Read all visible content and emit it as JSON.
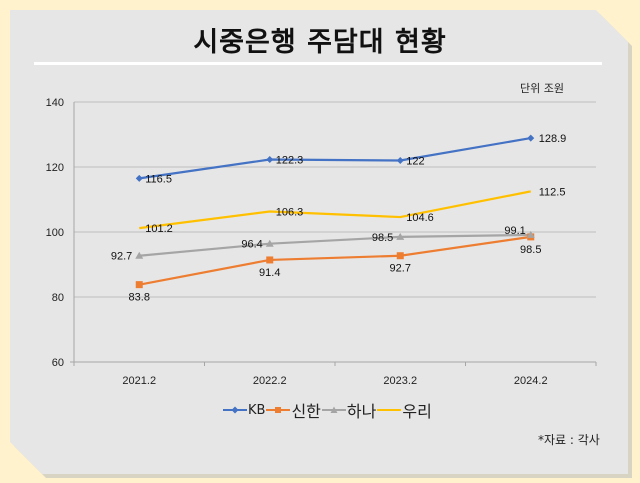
{
  "header": {
    "title": "시중은행 주담대 현황",
    "unit_label": "단위 조원"
  },
  "footer": {
    "source": "*자료 : 각사"
  },
  "colors": {
    "background": "#FFF2CC",
    "panel": "#E7E6E6",
    "KB": "#4472C4",
    "신한": "#ED7D31",
    "하나": "#A5A5A5",
    "우리": "#FFC000"
  },
  "chart_data": {
    "type": "line",
    "title": "시중은행 주담대 현황",
    "xlabel": "",
    "ylabel": "",
    "categories": [
      "2021.2",
      "2022.2",
      "2023.2",
      "2024.2"
    ],
    "ylim": [
      60,
      140
    ],
    "yticks": [
      60,
      80,
      100,
      120,
      140
    ],
    "ytick_labels": [
      "60",
      "80",
      "100",
      "120",
      "140"
    ],
    "grid": true,
    "legend_position": "bottom",
    "series": [
      {
        "name": "KB",
        "marker": "diamond",
        "values": [
          116.5,
          122.3,
          122,
          128.9
        ],
        "labels": [
          "116.5",
          "122.3",
          "122",
          "128.9"
        ]
      },
      {
        "name": "신한",
        "marker": "square",
        "values": [
          83.8,
          91.4,
          92.7,
          98.5
        ],
        "labels": [
          "83.8",
          "91.4",
          "92.7",
          "98.5"
        ]
      },
      {
        "name": "하나",
        "marker": "triangle",
        "values": [
          92.7,
          96.4,
          98.5,
          99.1
        ],
        "labels": [
          "92.7",
          "96.4",
          "98.5",
          "99.1"
        ]
      },
      {
        "name": "우리",
        "marker": "none",
        "values": [
          101.2,
          106.3,
          104.6,
          112.5
        ],
        "labels": [
          "101.2",
          "106.3",
          "104.6",
          "112.5"
        ]
      }
    ]
  }
}
